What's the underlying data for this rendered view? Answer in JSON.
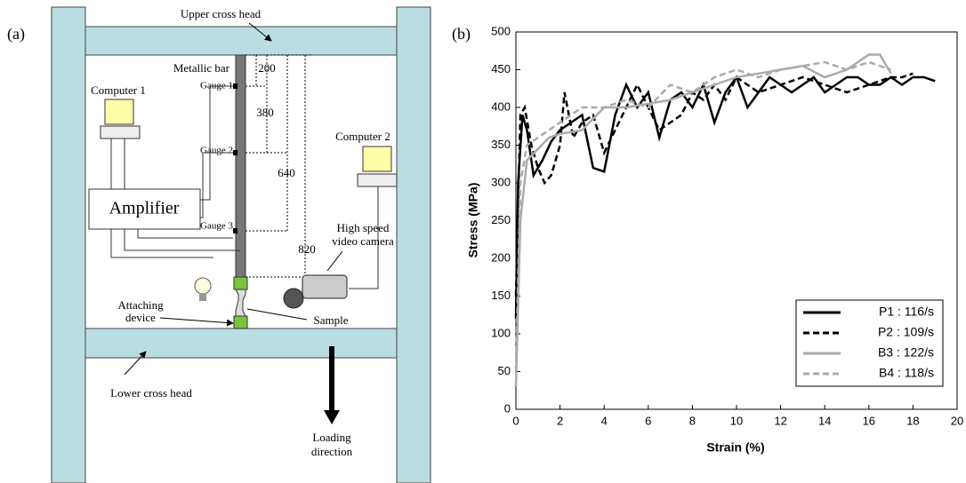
{
  "diagram": {
    "panel_label": "(a)",
    "upper_cross_head": "Upper cross head",
    "metallic_bar": "Metallic bar",
    "computer_1": "Computer 1",
    "computer_2": "Computer 2",
    "gauges": [
      "Gauge 1",
      "Gauge 2",
      "Gauge 3"
    ],
    "amplifier": "Amplifier",
    "camera": [
      "High speed",
      "video camera"
    ],
    "attaching_device": [
      "Attaching",
      "device"
    ],
    "sample": "Sample",
    "lower_cross_head": "Lower cross head",
    "loading_direction": [
      "Loading",
      "direction"
    ],
    "distances": [
      200,
      380,
      640,
      820
    ]
  },
  "chart_data": {
    "type": "line",
    "panel_label": "(b)",
    "x_label": "Strain (%)",
    "y_label": "Stress (MPa)",
    "xlim": [
      0,
      20
    ],
    "xticks": [
      0,
      2,
      4,
      6,
      8,
      10,
      12,
      14,
      16,
      18,
      20
    ],
    "ylim": [
      0,
      500
    ],
    "yticks": [
      0,
      50,
      100,
      150,
      200,
      250,
      300,
      350,
      400,
      450,
      500
    ],
    "legend_position": "lower right",
    "series": [
      {
        "name": "P1 : 116/s",
        "color": "#000000",
        "dash": false,
        "x": [
          0,
          0.1,
          0.3,
          0.5,
          0.8,
          1.2,
          1.6,
          2.0,
          2.5,
          3.0,
          3.5,
          4.0,
          4.5,
          5.0,
          5.5,
          6.0,
          6.5,
          7.0,
          7.5,
          8.0,
          8.5,
          9.0,
          9.5,
          10.0,
          10.5,
          11.0,
          11.5,
          12.0,
          12.5,
          13.0,
          13.5,
          14.0,
          14.5,
          15.0,
          15.5,
          16.0,
          16.5,
          17.0,
          17.5,
          18.0,
          18.5,
          19.0
        ],
        "values": [
          120,
          300,
          390,
          370,
          310,
          330,
          355,
          370,
          380,
          390,
          320,
          315,
          390,
          430,
          400,
          420,
          360,
          410,
          420,
          400,
          430,
          380,
          420,
          440,
          400,
          420,
          440,
          430,
          420,
          430,
          440,
          420,
          430,
          440,
          440,
          430,
          430,
          440,
          430,
          440,
          440,
          435
        ]
      },
      {
        "name": "P2 : 109/s",
        "color": "#000000",
        "dash": true,
        "x": [
          0,
          0.2,
          0.4,
          0.7,
          1.0,
          1.3,
          1.6,
          2.0,
          2.2,
          2.6,
          3.0,
          3.5,
          4.0,
          4.5,
          5.0,
          5.5,
          6.0,
          6.5,
          7.0,
          7.5,
          8.0,
          8.5,
          9.0,
          9.5,
          10.0,
          10.5,
          11.0,
          12,
          13,
          14,
          15,
          16,
          17,
          17.5,
          18
        ],
        "values": [
          150,
          390,
          400,
          350,
          320,
          300,
          310,
          350,
          420,
          360,
          380,
          390,
          340,
          370,
          400,
          430,
          400,
          370,
          380,
          390,
          420,
          410,
          430,
          410,
          440,
          430,
          420,
          430,
          440,
          430,
          420,
          430,
          440,
          440,
          445
        ]
      },
      {
        "name": "B3 : 122/s",
        "color": "#aaaaaa",
        "dash": false,
        "x": [
          0,
          0.2,
          0.5,
          1,
          1.5,
          2,
          3,
          4,
          5,
          6,
          7,
          8,
          9,
          10,
          11,
          12,
          13,
          14,
          15,
          16,
          16.5,
          17
        ],
        "values": [
          30,
          250,
          330,
          345,
          360,
          365,
          370,
          400,
          400,
          405,
          410,
          420,
          430,
          440,
          445,
          450,
          455,
          440,
          450,
          470,
          470,
          445
        ]
      },
      {
        "name": "B4 : 118/s",
        "color": "#aaaaaa",
        "dash": true,
        "x": [
          0,
          0.2,
          0.5,
          1,
          2,
          3,
          4,
          5,
          6,
          7,
          8,
          9,
          10,
          11,
          12,
          13,
          14,
          15,
          16,
          17
        ],
        "values": [
          50,
          300,
          350,
          360,
          380,
          400,
          400,
          410,
          400,
          430,
          420,
          440,
          450,
          440,
          450,
          455,
          460,
          450,
          460,
          450
        ]
      }
    ]
  }
}
